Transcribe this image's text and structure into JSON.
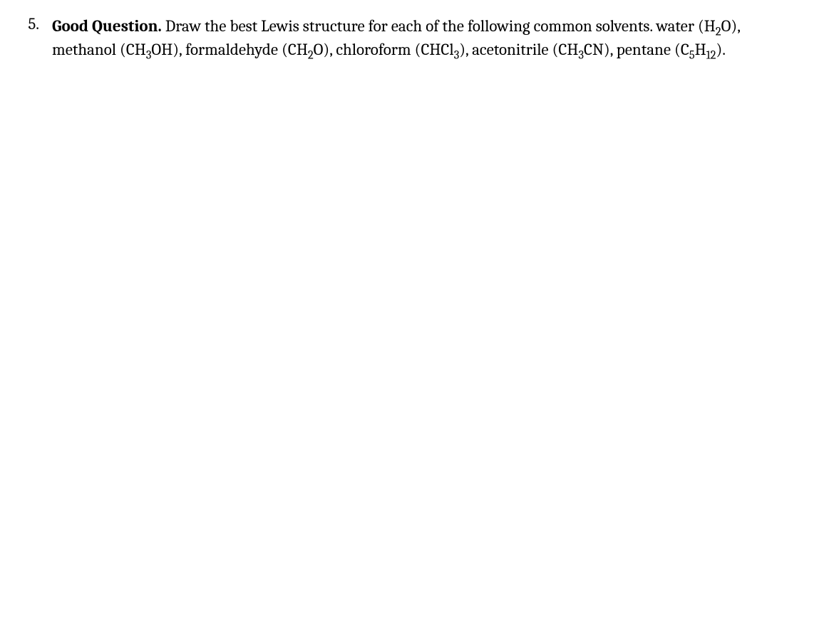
{
  "question": {
    "number": "5.",
    "title": "Good Question.",
    "intro": " Draw the best Lewis structure for each of the following common solvents.  ",
    "items": [
      {
        "name": "water",
        "formula_parts": [
          "(H",
          "2",
          "O)"
        ]
      },
      {
        "name": "methanol",
        "formula_parts": [
          "(CH",
          "3",
          "OH)"
        ]
      },
      {
        "name": "formaldehyde",
        "formula_parts": [
          "(CH",
          "2",
          "O)"
        ]
      },
      {
        "name": "chloroform",
        "formula_parts": [
          "(CHCl",
          "3",
          ")"
        ]
      },
      {
        "name": "acetonitrile",
        "formula_parts": [
          "(CH",
          "3",
          "CN)"
        ]
      },
      {
        "name": "pentane",
        "formula_parts": [
          "(C",
          "5",
          "H",
          "12",
          ")"
        ]
      }
    ],
    "text_color": "#000000",
    "background_color": "#ffffff",
    "font_size": 23
  }
}
